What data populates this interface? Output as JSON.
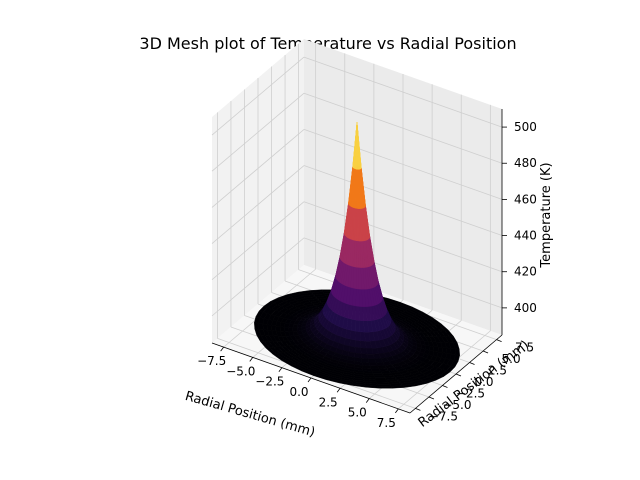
{
  "chart_data": {
    "type": "surface3d",
    "title": "3D Mesh plot of Temperature vs Radial Position",
    "xlabel": "Radial Position (mm)",
    "ylabel": "Radial Position (mm)",
    "zlabel": "Temperature (K)",
    "x_ticks": [
      "−7.5",
      "−5.0",
      "−2.5",
      "0.0",
      "2.5",
      "5.0",
      "7.5"
    ],
    "y_ticks": [
      "−7.5",
      "−5.0",
      "−2.5",
      "0.0",
      "2.5",
      "5.0",
      "7.5"
    ],
    "z_ticks": [
      "400",
      "420",
      "440",
      "460",
      "480",
      "500"
    ],
    "xlim": [
      -8.5,
      8.5
    ],
    "ylim": [
      -8.5,
      8.5
    ],
    "zlim": [
      385,
      510
    ],
    "grid": true,
    "colormap": "inferno",
    "surface": {
      "shape": "radially symmetric peak (disk)",
      "radius_mm": 8,
      "peak_temperature_K": 505,
      "edge_temperature_K": 385
    }
  }
}
